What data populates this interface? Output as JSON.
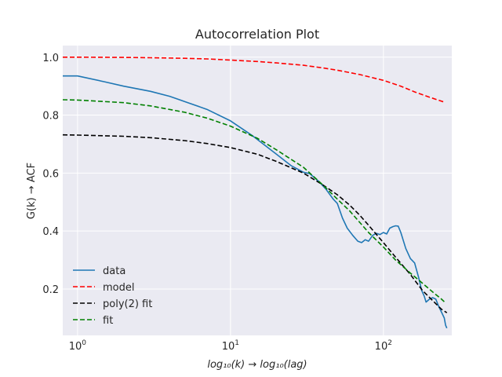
{
  "chart_data": {
    "type": "line",
    "title": "Autocorrelation Plot",
    "xlabel": "log₁₀(k) → log₁₀(lag)",
    "ylabel": "G(k) → ACF",
    "xscale": "log",
    "xlim": [
      0.8,
      280
    ],
    "ylim": [
      0.04,
      1.04
    ],
    "x_ticks": [
      {
        "value": 1,
        "base": "10",
        "exp": "0"
      },
      {
        "value": 10,
        "base": "10",
        "exp": "1"
      },
      {
        "value": 100,
        "base": "10",
        "exp": "2"
      }
    ],
    "y_ticks": [
      {
        "value": 0.2,
        "label": "0.2"
      },
      {
        "value": 0.4,
        "label": "0.4"
      },
      {
        "value": 0.6,
        "label": "0.6"
      },
      {
        "value": 0.8,
        "label": "0.8"
      },
      {
        "value": 1.0,
        "label": "1.0"
      }
    ],
    "grid": true,
    "legend_position": "lower-left",
    "series": [
      {
        "name": "data",
        "color": "#1f77b4",
        "style": "solid",
        "points": [
          [
            0.8,
            0.935
          ],
          [
            1,
            0.935
          ],
          [
            1.5,
            0.915
          ],
          [
            2,
            0.9
          ],
          [
            3,
            0.882
          ],
          [
            4,
            0.865
          ],
          [
            5,
            0.847
          ],
          [
            7,
            0.82
          ],
          [
            10,
            0.78
          ],
          [
            14,
            0.728
          ],
          [
            20,
            0.665
          ],
          [
            25,
            0.625
          ],
          [
            30,
            0.603
          ],
          [
            33,
            0.598
          ],
          [
            38,
            0.57
          ],
          [
            42,
            0.545
          ],
          [
            47,
            0.51
          ],
          [
            50,
            0.495
          ],
          [
            54,
            0.445
          ],
          [
            58,
            0.41
          ],
          [
            63,
            0.385
          ],
          [
            68,
            0.365
          ],
          [
            72,
            0.36
          ],
          [
            76,
            0.37
          ],
          [
            80,
            0.365
          ],
          [
            85,
            0.385
          ],
          [
            90,
            0.392
          ],
          [
            95,
            0.388
          ],
          [
            100,
            0.395
          ],
          [
            105,
            0.39
          ],
          [
            110,
            0.41
          ],
          [
            115,
            0.415
          ],
          [
            120,
            0.418
          ],
          [
            125,
            0.417
          ],
          [
            130,
            0.395
          ],
          [
            140,
            0.34
          ],
          [
            150,
            0.305
          ],
          [
            160,
            0.29
          ],
          [
            170,
            0.24
          ],
          [
            178,
            0.195
          ],
          [
            185,
            0.175
          ],
          [
            190,
            0.155
          ],
          [
            200,
            0.165
          ],
          [
            210,
            0.17
          ],
          [
            220,
            0.165
          ],
          [
            230,
            0.14
          ],
          [
            240,
            0.12
          ],
          [
            250,
            0.1
          ],
          [
            255,
            0.075
          ],
          [
            260,
            0.065
          ]
        ]
      },
      {
        "name": "model",
        "color": "#ff0000",
        "style": "dashed",
        "points": [
          [
            0.8,
            1.0
          ],
          [
            1,
            1.0
          ],
          [
            2,
            0.999
          ],
          [
            3,
            0.998
          ],
          [
            5,
            0.996
          ],
          [
            7,
            0.994
          ],
          [
            10,
            0.99
          ],
          [
            15,
            0.985
          ],
          [
            20,
            0.98
          ],
          [
            30,
            0.972
          ],
          [
            40,
            0.963
          ],
          [
            50,
            0.955
          ],
          [
            70,
            0.94
          ],
          [
            100,
            0.92
          ],
          [
            130,
            0.9
          ],
          [
            160,
            0.88
          ],
          [
            200,
            0.862
          ],
          [
            250,
            0.845
          ]
        ]
      },
      {
        "name": "poly(2) fit",
        "color": "#000000",
        "style": "dashed",
        "points": [
          [
            0.8,
            0.732
          ],
          [
            1,
            0.731
          ],
          [
            2,
            0.727
          ],
          [
            3,
            0.722
          ],
          [
            5,
            0.712
          ],
          [
            7,
            0.702
          ],
          [
            10,
            0.688
          ],
          [
            15,
            0.665
          ],
          [
            20,
            0.64
          ],
          [
            30,
            0.6
          ],
          [
            40,
            0.56
          ],
          [
            50,
            0.525
          ],
          [
            60,
            0.49
          ],
          [
            70,
            0.455
          ],
          [
            80,
            0.42
          ],
          [
            100,
            0.36
          ],
          [
            120,
            0.31
          ],
          [
            150,
            0.25
          ],
          [
            180,
            0.195
          ],
          [
            210,
            0.16
          ],
          [
            240,
            0.13
          ],
          [
            260,
            0.118
          ]
        ]
      },
      {
        "name": "fit",
        "color": "#008000",
        "style": "dashed",
        "points": [
          [
            0.8,
            0.853
          ],
          [
            1,
            0.852
          ],
          [
            2,
            0.843
          ],
          [
            3,
            0.832
          ],
          [
            5,
            0.81
          ],
          [
            7,
            0.79
          ],
          [
            10,
            0.762
          ],
          [
            15,
            0.72
          ],
          [
            20,
            0.68
          ],
          [
            30,
            0.62
          ],
          [
            40,
            0.56
          ],
          [
            50,
            0.51
          ],
          [
            60,
            0.47
          ],
          [
            70,
            0.43
          ],
          [
            80,
            0.395
          ],
          [
            100,
            0.345
          ],
          [
            120,
            0.3
          ],
          [
            150,
            0.255
          ],
          [
            180,
            0.22
          ],
          [
            210,
            0.19
          ],
          [
            240,
            0.165
          ],
          [
            255,
            0.152
          ]
        ]
      }
    ]
  }
}
